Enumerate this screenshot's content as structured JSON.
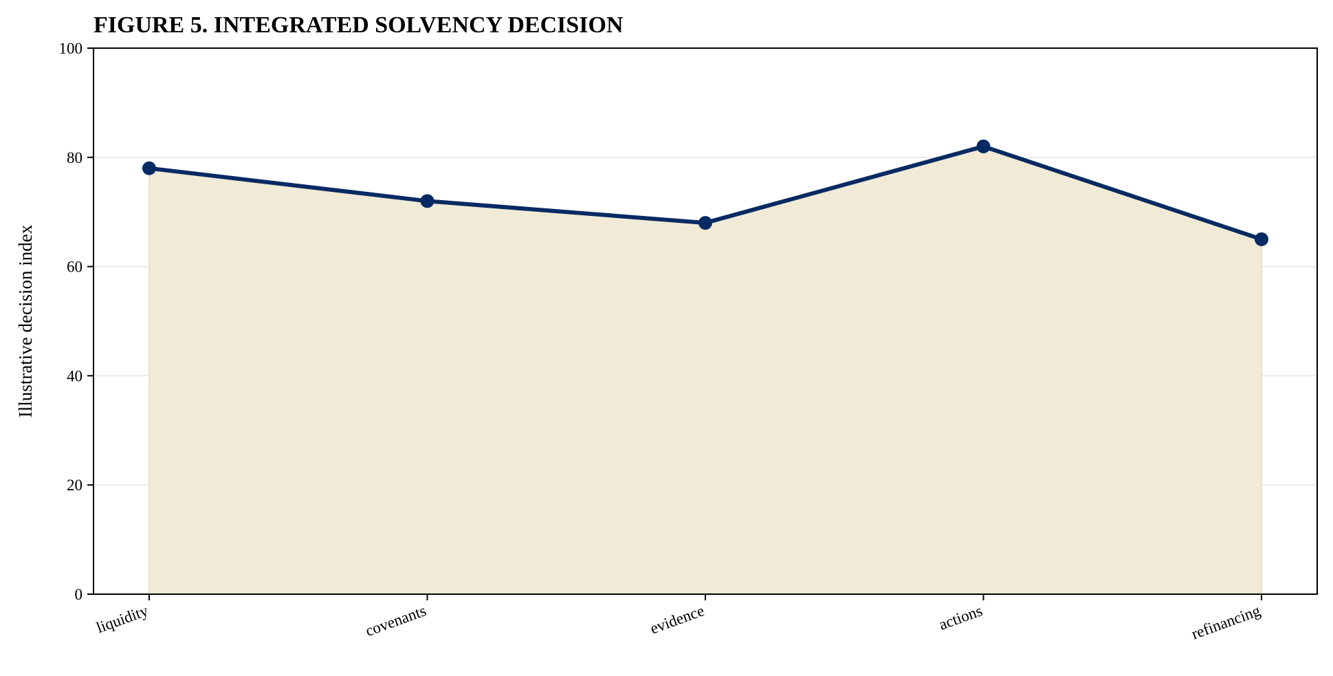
{
  "chart_data": {
    "type": "area",
    "title": "FIGURE 5. INTEGRATED SOLVENCY DECISION",
    "xlabel": "",
    "ylabel": "Illustrative decision index",
    "categories": [
      "liquidity",
      "covenants",
      "evidence",
      "actions",
      "refinancing"
    ],
    "series": [
      {
        "values": [
          78,
          72,
          68,
          82,
          65
        ]
      }
    ],
    "ylim": [
      0,
      100
    ],
    "yticks": [
      0,
      20,
      40,
      60,
      80,
      100
    ],
    "grid": "horizontal",
    "legend": "none",
    "colors": {
      "line": "#062a63",
      "fill": "#f0ead6",
      "grid": "#e6e6e6",
      "axis": "#000000"
    }
  }
}
